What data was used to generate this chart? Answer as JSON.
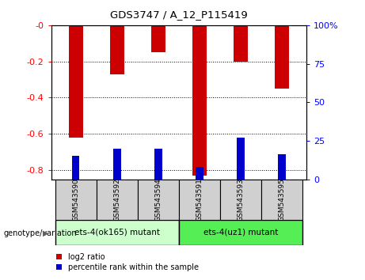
{
  "title": "GDS3747 / A_12_P115419",
  "samples": [
    "GSM543590",
    "GSM543592",
    "GSM543594",
    "GSM543591",
    "GSM543593",
    "GSM543595"
  ],
  "log2_ratio": [
    -0.62,
    -0.27,
    -0.15,
    -0.83,
    -0.2,
    -0.35
  ],
  "percentile_rank": [
    15,
    20,
    20,
    8,
    27,
    16
  ],
  "group1_label": "ets-4(ok165) mutant",
  "group2_label": "ets-4(uz1) mutant",
  "genotype_label": "genotype/variation",
  "ylim_left": [
    -0.85,
    0.0
  ],
  "ylim_right": [
    0,
    100
  ],
  "yticks_left": [
    -0.8,
    -0.6,
    -0.4,
    -0.2,
    0.0
  ],
  "ytick_labels_left": [
    "-0.8",
    "-0.6",
    "-0.4",
    "-0.2",
    "-0"
  ],
  "yticks_right": [
    0,
    25,
    50,
    75,
    100
  ],
  "ytick_labels_right": [
    "0",
    "25",
    "50",
    "75",
    "100%"
  ],
  "bar_color": "#cc0000",
  "pct_color": "#0000cc",
  "bg_plot": "#ffffff",
  "bg_group1": "#ccffcc",
  "bg_group2": "#55ee55",
  "bg_sample": "#d0d0d0",
  "legend_log2": "log2 ratio",
  "legend_pct": "percentile rank within the sample",
  "bar_width": 0.35,
  "pct_bar_width": 0.18
}
